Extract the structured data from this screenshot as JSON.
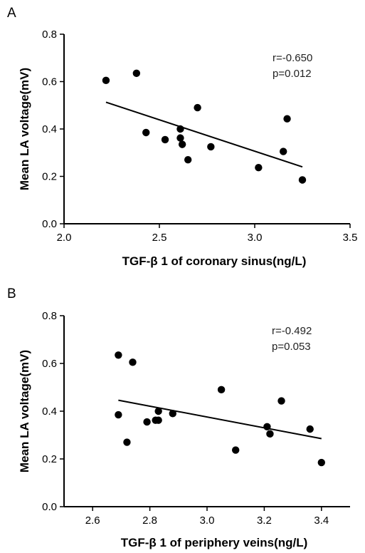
{
  "chart_data": [
    {
      "type": "scatter",
      "panel_label": "A",
      "xlabel": "TGF-β 1 of coronary sinus(ng/L)",
      "ylabel": "Mean LA voltage(mV)",
      "xlim": [
        2.0,
        3.5
      ],
      "ylim": [
        0.0,
        0.8
      ],
      "xticks": [
        "2.0",
        "2.5",
        "3.0",
        "3.5"
      ],
      "yticks": [
        "0.0",
        "0.2",
        "0.4",
        "0.6",
        "0.8"
      ],
      "annotations": [
        "r=-0.650",
        "p=0.012"
      ],
      "points": [
        {
          "x": 2.22,
          "y": 0.605
        },
        {
          "x": 2.38,
          "y": 0.635
        },
        {
          "x": 2.43,
          "y": 0.385
        },
        {
          "x": 2.53,
          "y": 0.355
        },
        {
          "x": 2.61,
          "y": 0.4
        },
        {
          "x": 2.61,
          "y": 0.362
        },
        {
          "x": 2.62,
          "y": 0.335
        },
        {
          "x": 2.65,
          "y": 0.27
        },
        {
          "x": 2.7,
          "y": 0.49
        },
        {
          "x": 2.77,
          "y": 0.325
        },
        {
          "x": 3.02,
          "y": 0.237
        },
        {
          "x": 3.15,
          "y": 0.305
        },
        {
          "x": 3.17,
          "y": 0.443
        },
        {
          "x": 3.25,
          "y": 0.185
        }
      ],
      "fit_line": {
        "x": [
          2.22,
          3.25
        ],
        "y": [
          0.513,
          0.24
        ]
      }
    },
    {
      "type": "scatter",
      "panel_label": "B",
      "xlabel": "TGF-β 1 of periphery veins(ng/L)",
      "ylabel": "Mean LA voltage(mV)",
      "xlim": [
        2.5,
        3.5
      ],
      "ylim": [
        0.0,
        0.8
      ],
      "xticks": [
        "2.6",
        "2.8",
        "3.0",
        "3.2",
        "3.4"
      ],
      "yticks": [
        "0.0",
        "0.2",
        "0.4",
        "0.6",
        "0.8"
      ],
      "annotations": [
        "r=-0.492",
        "p=0.053"
      ],
      "points": [
        {
          "x": 2.69,
          "y": 0.635
        },
        {
          "x": 2.74,
          "y": 0.605
        },
        {
          "x": 2.69,
          "y": 0.385
        },
        {
          "x": 2.72,
          "y": 0.27
        },
        {
          "x": 2.79,
          "y": 0.355
        },
        {
          "x": 2.82,
          "y": 0.362
        },
        {
          "x": 2.83,
          "y": 0.362
        },
        {
          "x": 2.83,
          "y": 0.4
        },
        {
          "x": 2.88,
          "y": 0.39
        },
        {
          "x": 3.05,
          "y": 0.49
        },
        {
          "x": 3.1,
          "y": 0.237
        },
        {
          "x": 3.21,
          "y": 0.335
        },
        {
          "x": 3.22,
          "y": 0.305
        },
        {
          "x": 3.26,
          "y": 0.443
        },
        {
          "x": 3.36,
          "y": 0.325
        },
        {
          "x": 3.4,
          "y": 0.185
        }
      ],
      "fit_line": {
        "x": [
          2.69,
          3.4
        ],
        "y": [
          0.446,
          0.285
        ]
      }
    }
  ]
}
